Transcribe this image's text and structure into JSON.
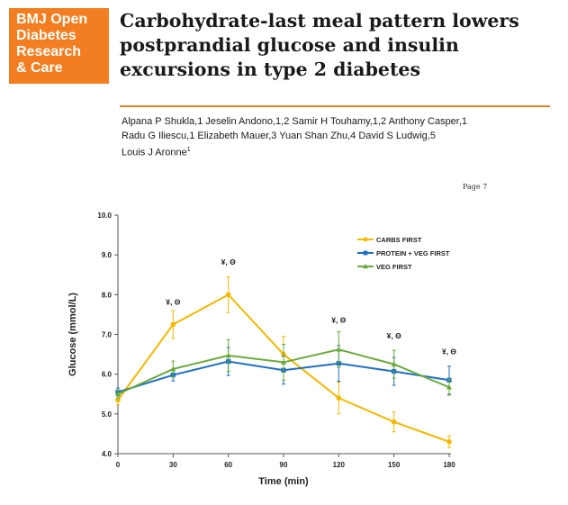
{
  "journal": {
    "logo_lines": [
      "BMJ Open",
      "Diabetes",
      "Research",
      "& Care"
    ],
    "brand_color": "#f37e21"
  },
  "article": {
    "title_lines": [
      "Carbohydrate-last meal pattern lowers",
      "postprandial glucose and insulin",
      "excursions in type 2 diabetes"
    ],
    "author_lines": [
      "Alpana P Shukla,1 Jeselin Andono,1,2 Samir H Touhamy,1,2 Anthony Casper,1",
      "Radu G Iliescu,1 Elizabeth Mauer,3 Yuan Shan Zhu,4 David S Ludwig,5",
      "Louis J Aronne1"
    ]
  },
  "page_marker": "Page 7",
  "chart_data": {
    "type": "line",
    "xlabel": "Time (min)",
    "ylabel": "Glucose (mmol/L)",
    "x": [
      0,
      30,
      60,
      90,
      120,
      150,
      180
    ],
    "xticks": [
      "0",
      "30",
      "60",
      "90",
      "120",
      "150",
      "180"
    ],
    "yticks": [
      "4.0",
      "5.0",
      "6.0",
      "7.0",
      "8.0",
      "9.0",
      "10.0"
    ],
    "xlim": [
      0,
      180
    ],
    "ylim": [
      4.0,
      10.0
    ],
    "grid": false,
    "legend_position": "top-right",
    "series": [
      {
        "name": "CARBS FIRST",
        "color": "#f5b800",
        "marker": "circle",
        "values": [
          5.35,
          7.25,
          8.0,
          6.5,
          5.4,
          4.8,
          4.3
        ],
        "errors": [
          0.12,
          0.35,
          0.45,
          0.45,
          0.4,
          0.25,
          0.15
        ]
      },
      {
        "name": "PROTEIN + VEG FIRST",
        "color": "#1e6fc2",
        "marker": "square",
        "values": [
          5.55,
          5.98,
          6.32,
          6.1,
          6.27,
          6.07,
          5.85
        ],
        "errors": [
          0.1,
          0.15,
          0.35,
          0.35,
          0.45,
          0.35,
          0.35
        ]
      },
      {
        "name": "VEG FIRST",
        "color": "#6aaa3a",
        "marker": "triangle",
        "values": [
          5.5,
          6.13,
          6.47,
          6.3,
          6.62,
          6.25,
          5.67
        ],
        "errors": [
          0.1,
          0.2,
          0.4,
          0.45,
          0.45,
          0.35,
          0.2
        ]
      }
    ],
    "annotations": [
      {
        "x": 30,
        "y": 7.75,
        "text": "¥, Θ"
      },
      {
        "x": 60,
        "y": 8.75,
        "text": "¥, Θ"
      },
      {
        "x": 120,
        "y": 7.3,
        "text": "¥, Θ"
      },
      {
        "x": 150,
        "y": 6.9,
        "text": "¥, Θ"
      },
      {
        "x": 180,
        "y": 6.5,
        "text": "¥, Θ"
      }
    ]
  }
}
